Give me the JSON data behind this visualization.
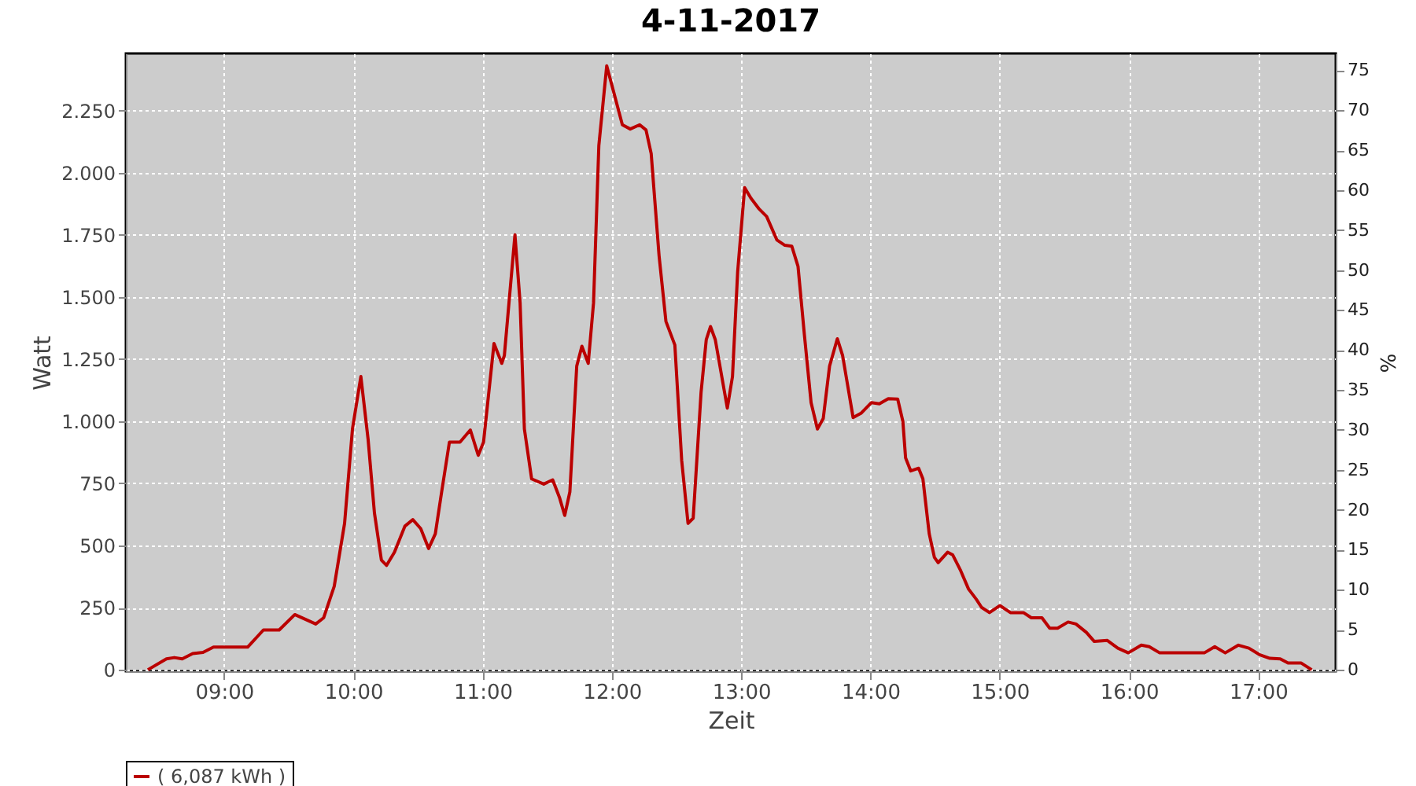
{
  "chart_data": {
    "type": "line",
    "title": "4-11-2017",
    "xlabel": "Zeit",
    "ylabel": "Watt",
    "y2label": "%",
    "x": [
      8.41,
      8.554,
      8.615,
      8.676,
      8.757,
      8.837,
      8.918,
      9.182,
      9.304,
      9.426,
      9.547,
      9.709,
      9.77,
      9.852,
      9.932,
      9.993,
      10.058,
      10.114,
      10.163,
      10.217,
      10.257,
      10.318,
      10.399,
      10.46,
      10.521,
      10.582,
      10.634,
      10.683,
      10.743,
      10.825,
      10.905,
      10.966,
      11.007,
      11.088,
      11.148,
      11.168,
      11.25,
      11.29,
      11.323,
      11.379,
      11.473,
      11.542,
      11.594,
      11.635,
      11.675,
      11.728,
      11.768,
      11.817,
      11.858,
      11.899,
      11.96,
      12.0,
      12.081,
      12.142,
      12.215,
      12.264,
      12.304,
      12.365,
      12.418,
      12.487,
      12.54,
      12.589,
      12.629,
      12.69,
      12.73,
      12.763,
      12.8,
      12.893,
      12.933,
      12.973,
      13.027,
      13.075,
      13.136,
      13.197,
      13.277,
      13.338,
      13.392,
      13.44,
      13.489,
      13.541,
      13.59,
      13.635,
      13.684,
      13.744,
      13.785,
      13.866,
      13.927,
      14.008,
      14.069,
      14.138,
      14.211,
      14.251,
      14.272,
      14.312,
      14.373,
      14.406,
      14.455,
      14.495,
      14.524,
      14.597,
      14.637,
      14.698,
      14.759,
      14.82,
      14.86,
      14.921,
      15.002,
      15.083,
      15.184,
      15.245,
      15.327,
      15.387,
      15.448,
      15.529,
      15.59,
      15.671,
      15.732,
      15.833,
      15.914,
      15.995,
      16.096,
      16.157,
      16.238,
      16.583,
      16.664,
      16.745,
      16.847,
      16.928,
      17.009,
      17.09,
      17.17,
      17.231,
      17.333,
      17.414
    ],
    "series": [
      {
        "name": "( 6,087 kWh )",
        "color": "#bb0000",
        "values": [
          0,
          44,
          49,
          44,
          65,
          70,
          91,
          91,
          160,
          160,
          222,
          184,
          209,
          336,
          589,
          969,
          1180,
          927,
          631,
          441,
          420,
          473,
          578,
          604,
          568,
          488,
          547,
          716,
          916,
          916,
          965,
          863,
          916,
          1313,
          1233,
          1264,
          1750,
          1476,
          969,
          768,
          747,
          764,
          694,
          621,
          716,
          1222,
          1302,
          1233,
          1476,
          2109,
          2430,
          2352,
          2193,
          2176,
          2193,
          2172,
          2077,
          1666,
          1402,
          1307,
          842,
          589,
          610,
          1117,
          1328,
          1381,
          1328,
          1053,
          1180,
          1602,
          1940,
          1898,
          1856,
          1824,
          1729,
          1708,
          1704,
          1623,
          1349,
          1075,
          969,
          1011,
          1222,
          1332,
          1264,
          1015,
          1032,
          1075,
          1070,
          1091,
          1089,
          1000,
          853,
          800,
          811,
          768,
          547,
          452,
          431,
          473,
          462,
          399,
          325,
          283,
          251,
          230,
          258,
          230,
          230,
          209,
          209,
          167,
          167,
          192,
          184,
          150,
          114,
          118,
          87,
          68,
          99,
          93,
          68,
          68,
          93,
          68,
          99,
          87,
          61,
          46,
          44,
          27,
          27,
          0
        ]
      }
    ],
    "xlim": [
      8.24,
      17.6
    ],
    "xticks": [
      {
        "value": 9,
        "label": "09:00"
      },
      {
        "value": 10,
        "label": "10:00"
      },
      {
        "value": 11,
        "label": "11:00"
      },
      {
        "value": 12,
        "label": "12:00"
      },
      {
        "value": 13,
        "label": "13:00"
      },
      {
        "value": 14,
        "label": "14:00"
      },
      {
        "value": 15,
        "label": "15:00"
      },
      {
        "value": 16,
        "label": "16:00"
      },
      {
        "value": 17,
        "label": "17:00"
      }
    ],
    "ylim": [
      -6,
      2480
    ],
    "yticks": [
      0,
      250,
      500,
      750,
      {
        "value": 1000,
        "label": "1.000"
      },
      {
        "value": 1250,
        "label": "1.250"
      },
      {
        "value": 1500,
        "label": "1.500"
      },
      {
        "value": 1750,
        "label": "1.750"
      },
      {
        "value": 2000,
        "label": "2.000"
      },
      {
        "value": 2250,
        "label": "2.250"
      }
    ],
    "y2lim": [
      -0.2,
      77.1
    ],
    "y2ticks": [
      0,
      5,
      10,
      15,
      20,
      25,
      30,
      35,
      40,
      45,
      50,
      55,
      60,
      65,
      70,
      75
    ],
    "grid": true,
    "legend": "bottom",
    "marker": "none",
    "line_style": "solid"
  }
}
